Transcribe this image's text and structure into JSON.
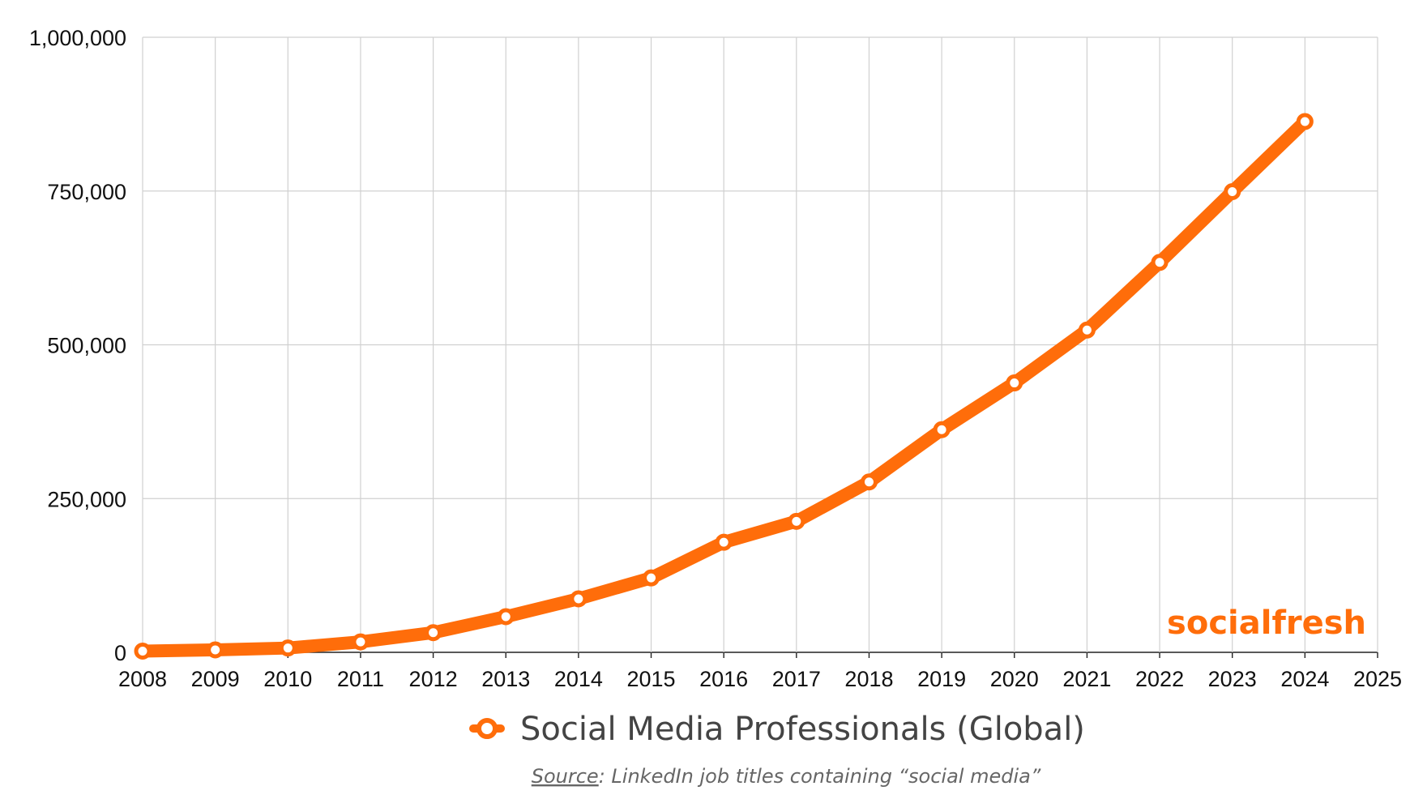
{
  "chart_data": {
    "type": "line",
    "x": [
      2008,
      2009,
      2010,
      2011,
      2012,
      2013,
      2014,
      2015,
      2016,
      2017,
      2018,
      2019,
      2020,
      2021,
      2022,
      2023,
      2024
    ],
    "xticks": [
      "2008",
      "2009",
      "2010",
      "2011",
      "2012",
      "2013",
      "2014",
      "2015",
      "2016",
      "2017",
      "2018",
      "2019",
      "2020",
      "2021",
      "2022",
      "2023",
      "2024",
      "2025"
    ],
    "xlim": [
      2008,
      2025
    ],
    "yticks": [
      "0",
      "250,000",
      "500,000",
      "750,000",
      "1,000,000"
    ],
    "ylim": [
      0,
      1000000
    ],
    "grid": true,
    "legend_position": "bottom-center",
    "series": [
      {
        "name": "Social Media Professionals (Global)",
        "color": "#ff6d0a",
        "values": [
          2000,
          4000,
          7000,
          17000,
          32000,
          58000,
          87000,
          121000,
          179000,
          213000,
          277000,
          362000,
          438000,
          524000,
          634000,
          749000,
          863000
        ]
      }
    ],
    "watermark": "socialfresh",
    "source_prefix": "Source",
    "source_text": ": LinkedIn job titles containing “social media”"
  }
}
